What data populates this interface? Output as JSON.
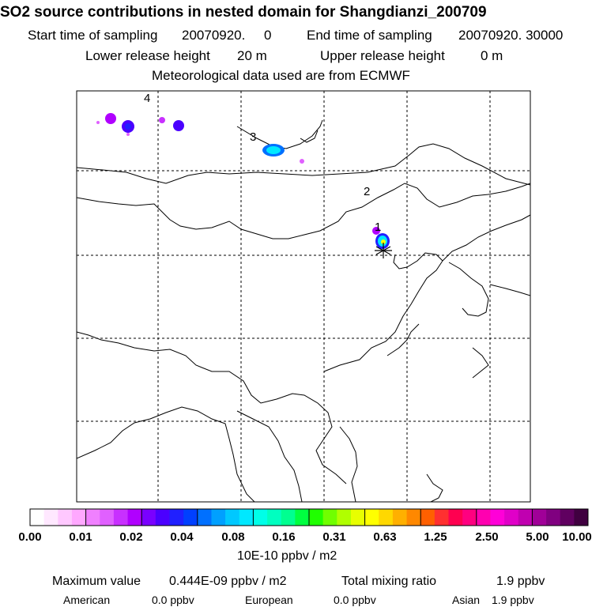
{
  "header": {
    "title": "SO2 source contributions in nested domain for Shangdianzi_200709",
    "start_label": "Start time of sampling",
    "start_value": "20070920.     0",
    "end_label": "End time of sampling",
    "end_value": "20070920. 30000",
    "lower_label": "Lower release height",
    "lower_value": "20 m",
    "upper_label": "Upper release height",
    "upper_value": "0 m",
    "met_text": "Meteorological data used are from ECMWF"
  },
  "map": {
    "source_labels": [
      "1",
      "2",
      "3",
      "4"
    ],
    "station_marker": "star"
  },
  "colorbar": {
    "ticks": [
      "0.00",
      "0.01",
      "0.02",
      "0.04",
      "0.08",
      "0.16",
      "0.31",
      "0.63",
      "1.25",
      "2.50",
      "5.00",
      "10.00"
    ],
    "unit": "10E-10 ppbv / m2",
    "colors": [
      "#ffffff",
      "#ffe8ff",
      "#ffc8ff",
      "#ffa8ff",
      "#f080ff",
      "#e060ff",
      "#c830ff",
      "#b000ff",
      "#7a00ff",
      "#4b00ff",
      "#2020ff",
      "#0040ff",
      "#0070ff",
      "#00a0ff",
      "#00c8ff",
      "#00e8ff",
      "#00ffe8",
      "#00ffc0",
      "#00ff90",
      "#00ff40",
      "#20ff00",
      "#70ff00",
      "#b0ff00",
      "#e8ff00",
      "#ffff00",
      "#ffd800",
      "#ffb000",
      "#ff8800",
      "#ff6000",
      "#ff3030",
      "#ff0050",
      "#ff0080",
      "#ff00b0",
      "#ff00d8",
      "#e000c8",
      "#c000b0",
      "#a00098",
      "#800080",
      "#600060",
      "#400040"
    ]
  },
  "footer": {
    "max_label": "Maximum value",
    "max_value": "0.444E-09 ppbv / m2",
    "total_label": "Total mixing ratio",
    "total_value": "1.9 ppbv",
    "american_label": "American",
    "american_value": "0.0 ppbv",
    "european_label": "European",
    "european_value": "0.0 ppbv",
    "asian_label": "Asian",
    "asian_value": "1.9 ppbv"
  }
}
